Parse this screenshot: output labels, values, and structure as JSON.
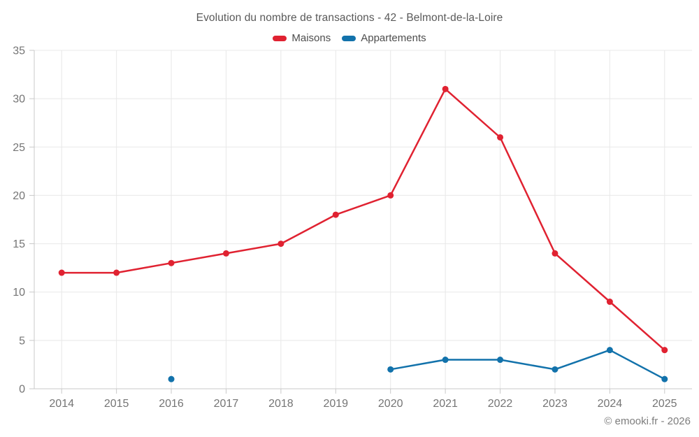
{
  "header": {
    "title": "Evolution du nombre de transactions - 42 - Belmont-de-la-Loire"
  },
  "footer": {
    "copyright": "© emooki.fr - 2026"
  },
  "palette": {
    "maisons_red": "#e02231",
    "appartements_blue": "#1272ab",
    "gridline": "#e8e8e8",
    "axis": "#c9c9c9",
    "tick_label": "#757575"
  },
  "chart_data": {
    "type": "line",
    "title": "Evolution du nombre de transactions - 42 - Belmont-de-la-Loire",
    "xlabel": "",
    "ylabel": "",
    "categories": [
      "2014",
      "2015",
      "2016",
      "2017",
      "2018",
      "2019",
      "2020",
      "2021",
      "2022",
      "2023",
      "2024",
      "2025"
    ],
    "series": [
      {
        "name": "Maisons",
        "color": "#e02231",
        "values": [
          12,
          12,
          13,
          14,
          15,
          18,
          20,
          31,
          26,
          14,
          9,
          4
        ]
      },
      {
        "name": "Appartements",
        "color": "#1272ab",
        "values": [
          null,
          null,
          1,
          null,
          null,
          null,
          2,
          3,
          3,
          2,
          4,
          1
        ]
      }
    ],
    "ylim": [
      0,
      35
    ],
    "yticks": [
      0,
      5,
      10,
      15,
      20,
      25,
      30,
      35
    ],
    "grid": true,
    "legend_position": "top"
  }
}
